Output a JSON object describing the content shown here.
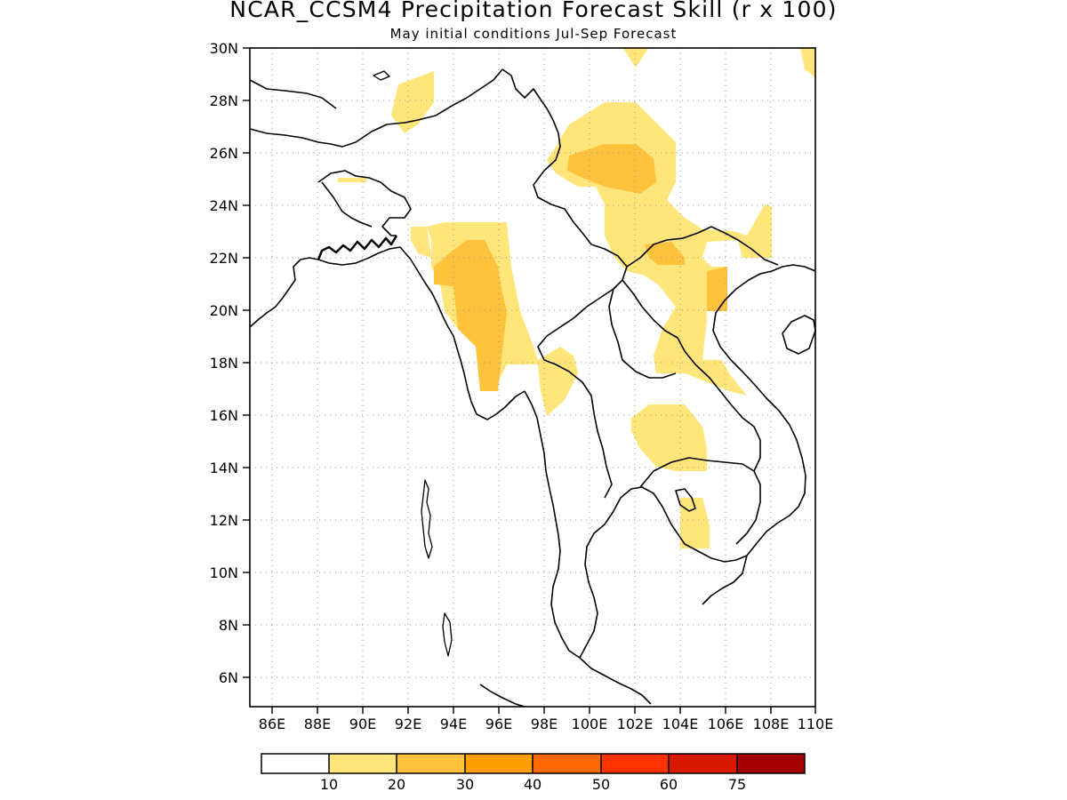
{
  "title": "NCAR_CCSM4 Precipitation Forecast Skill (r x 100)",
  "subtitle": "May initial conditions  Jul-Sep Forecast",
  "map": {
    "lon_range": [
      85,
      110
    ],
    "lat_range": [
      5,
      30
    ],
    "lat_ticks": [
      "30N",
      "28N",
      "26N",
      "24N",
      "22N",
      "20N",
      "18N",
      "16N",
      "14N",
      "12N",
      "10N",
      "8N",
      "6N"
    ],
    "lon_ticks": [
      "86E",
      "88E",
      "90E",
      "92E",
      "94E",
      "96E",
      "98E",
      "100E",
      "102E",
      "104E",
      "106E",
      "108E",
      "110E"
    ],
    "grid": "dotted"
  },
  "colorbar": {
    "colors": [
      "#ffffff",
      "#ffe57a",
      "#ffc23d",
      "#ff9e00",
      "#ff6a00",
      "#ff3300",
      "#d91a00",
      "#a50000"
    ],
    "labels": [
      "10",
      "20",
      "30",
      "40",
      "50",
      "60",
      "75"
    ]
  }
}
